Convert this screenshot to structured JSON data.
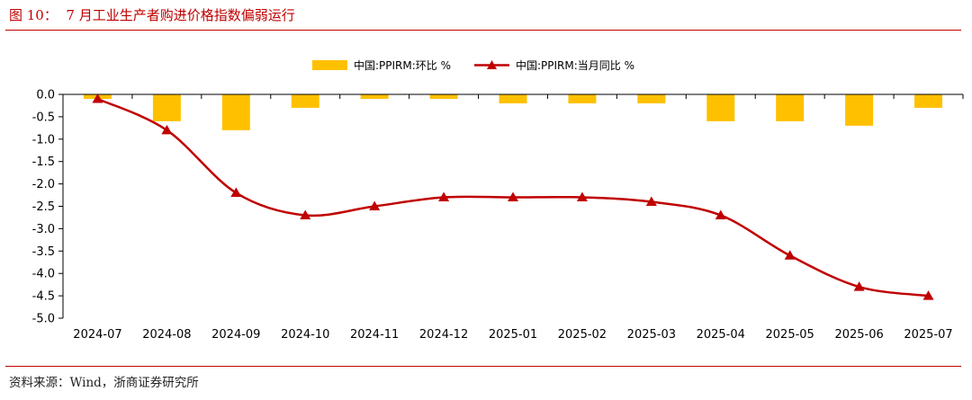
{
  "header": {
    "title": "图 10：  7 月工业生产者购进价格指数偏弱运行"
  },
  "footer": {
    "source": "资料来源：Wind，浙商证券研究所"
  },
  "colors": {
    "accent": "#c00000",
    "bar": "#ffc000",
    "line": "#c00000"
  },
  "chart_data": {
    "type": "bar",
    "title": "",
    "xlabel": "",
    "ylabel": "",
    "categories": [
      "2024-07",
      "2024-08",
      "2024-09",
      "2024-10",
      "2024-11",
      "2024-12",
      "2025-01",
      "2025-02",
      "2025-03",
      "2025-04",
      "2025-05",
      "2025-06",
      "2025-07"
    ],
    "ylim": [
      -5.0,
      0.0
    ],
    "yticks": [
      "0.0",
      "-0.5",
      "-1.0",
      "-1.5",
      "-2.0",
      "-2.5",
      "-3.0",
      "-3.5",
      "-4.0",
      "-4.5",
      "-5.0"
    ],
    "legend_position": "top-right",
    "grid": false,
    "series": [
      {
        "name": "中国:PPIRM:环比 %",
        "type": "bar",
        "color": "#ffc000",
        "values": [
          -0.1,
          -0.6,
          -0.8,
          -0.3,
          -0.1,
          -0.1,
          -0.2,
          -0.2,
          -0.2,
          -0.6,
          -0.6,
          -0.7,
          -0.3
        ]
      },
      {
        "name": "中国:PPIRM:当月同比 %",
        "type": "line",
        "marker": "triangle",
        "color": "#c00000",
        "values": [
          -0.1,
          -0.8,
          -2.2,
          -2.7,
          -2.5,
          -2.3,
          -2.3,
          -2.3,
          -2.4,
          -2.7,
          -3.6,
          -4.3,
          -4.5
        ]
      }
    ]
  }
}
